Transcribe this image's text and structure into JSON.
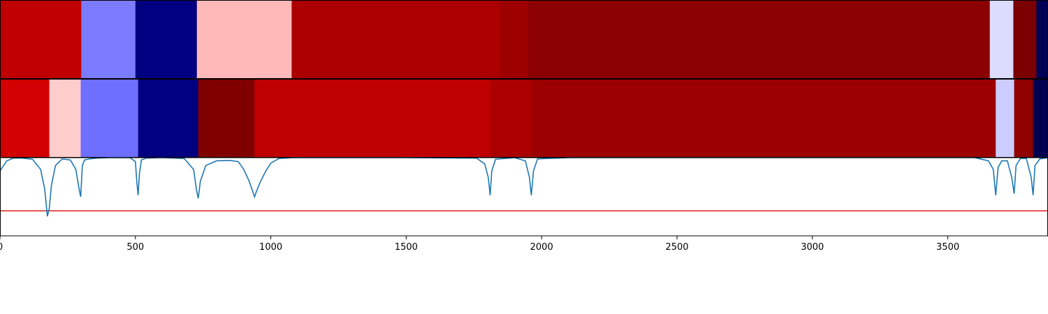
{
  "chart_data": [
    {
      "type": "heatmap",
      "name": "top band",
      "x_unit": "data",
      "segments": [
        {
          "x0": 0,
          "x1": 300,
          "color": "#c00000"
        },
        {
          "x0": 300,
          "x1": 500,
          "color": "#7b7bff"
        },
        {
          "x0": 500,
          "x1": 727,
          "color": "#000080"
        },
        {
          "x0": 727,
          "x1": 1077,
          "color": "#ffb9b9"
        },
        {
          "x0": 1077,
          "x1": 1845,
          "color": "#ab0000"
        },
        {
          "x0": 1845,
          "x1": 1950,
          "color": "#9e0000"
        },
        {
          "x0": 1950,
          "x1": 3655,
          "color": "#8b0000"
        },
        {
          "x0": 3655,
          "x1": 3742,
          "color": "#dcdcff"
        },
        {
          "x0": 3742,
          "x1": 3827,
          "color": "#7b0000"
        },
        {
          "x0": 3827,
          "x1": 3870,
          "color": "#000055"
        }
      ]
    },
    {
      "type": "heatmap",
      "name": "middle band",
      "segments": [
        {
          "x0": 0,
          "x1": 182,
          "color": "#d20000"
        },
        {
          "x0": 182,
          "x1": 298,
          "color": "#ffcccc"
        },
        {
          "x0": 298,
          "x1": 510,
          "color": "#6e6eff"
        },
        {
          "x0": 510,
          "x1": 732,
          "color": "#000080"
        },
        {
          "x0": 732,
          "x1": 940,
          "color": "#800000"
        },
        {
          "x0": 940,
          "x1": 1812,
          "color": "#bf0000"
        },
        {
          "x0": 1812,
          "x1": 1962,
          "color": "#aa0000"
        },
        {
          "x0": 1962,
          "x1": 3677,
          "color": "#9c0000"
        },
        {
          "x0": 3677,
          "x1": 3745,
          "color": "#ccccff"
        },
        {
          "x0": 3745,
          "x1": 3815,
          "color": "#900000"
        },
        {
          "x0": 3815,
          "x1": 3870,
          "color": "#000050"
        }
      ]
    },
    {
      "type": "line",
      "xlim": [
        0,
        3870
      ],
      "ylim": [
        0,
        1
      ],
      "grid": false,
      "series": [
        {
          "color": "#1f77b4",
          "x": [
            0,
            25,
            50,
            80,
            120,
            150,
            165,
            175,
            182,
            190,
            205,
            230,
            260,
            280,
            292,
            298,
            304,
            312,
            330,
            360,
            400,
            440,
            480,
            500,
            505,
            510,
            515,
            522,
            540,
            600,
            680,
            715,
            725,
            732,
            740,
            760,
            800,
            850,
            880,
            900,
            920,
            935,
            940,
            945,
            960,
            980,
            1000,
            1030,
            1080,
            1200,
            1500,
            1760,
            1790,
            1803,
            1810,
            1816,
            1830,
            1900,
            1940,
            1955,
            1962,
            1970,
            1985,
            2100,
            3000,
            3600,
            3650,
            3668,
            3677,
            3686,
            3700,
            3720,
            3736,
            3745,
            3752,
            3768,
            3790,
            3808,
            3815,
            3822,
            3840,
            3870
          ],
          "y": [
            0.83,
            0.96,
            0.995,
            0.995,
            0.98,
            0.85,
            0.6,
            0.25,
            0.35,
            0.65,
            0.9,
            0.985,
            0.97,
            0.85,
            0.6,
            0.5,
            0.9,
            0.97,
            0.985,
            0.995,
            1.0,
            1.0,
            1.0,
            0.95,
            0.7,
            0.52,
            0.8,
            0.97,
            0.995,
            1.0,
            0.99,
            0.85,
            0.6,
            0.48,
            0.7,
            0.9,
            0.96,
            0.965,
            0.95,
            0.85,
            0.7,
            0.55,
            0.5,
            0.55,
            0.68,
            0.82,
            0.93,
            0.99,
            1.0,
            1.0,
            1.0,
            0.995,
            0.92,
            0.75,
            0.52,
            0.83,
            0.98,
            1.0,
            0.96,
            0.75,
            0.52,
            0.83,
            0.985,
            1.0,
            1.0,
            1.0,
            0.96,
            0.85,
            0.52,
            0.88,
            0.96,
            0.96,
            0.75,
            0.54,
            0.9,
            0.99,
            0.99,
            0.75,
            0.52,
            0.9,
            0.985,
            1.0
          ]
        }
      ],
      "reference_line": {
        "y": 0.32,
        "color": "#e41a1c"
      },
      "xticks": [
        0,
        500,
        1000,
        1500,
        2000,
        2500,
        3000,
        3500
      ],
      "xtick_labels": [
        "0",
        "500",
        "1000",
        "1500",
        "2000",
        "2500",
        "3000",
        "3500"
      ]
    }
  ]
}
